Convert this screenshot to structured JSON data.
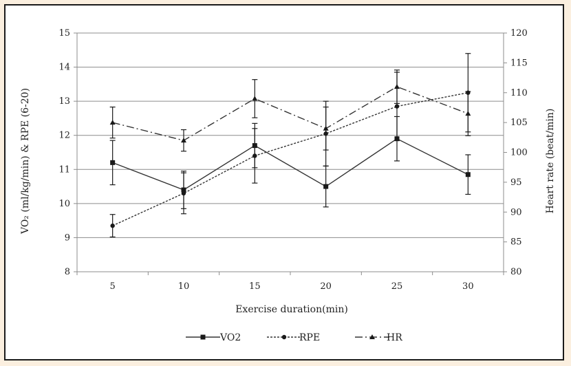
{
  "chart_data": {
    "type": "line",
    "x": [
      5,
      10,
      15,
      20,
      25,
      30
    ],
    "xlabel": "Exercise duration(min)",
    "ylabel_left": "VO₂ (ml/kg/min) & RPE (6-20)",
    "ylabel_right": "Heart rate (beat/min)",
    "ylim_left": [
      8,
      15
    ],
    "ylim_right": [
      80,
      120
    ],
    "yticks_left": [
      8,
      9,
      10,
      11,
      12,
      13,
      14,
      15
    ],
    "yticks_right": [
      80,
      85,
      90,
      95,
      100,
      105,
      110,
      115,
      120
    ],
    "grid": "horizontal",
    "legend_position": "bottom",
    "series": [
      {
        "name": "VO2",
        "axis": "left",
        "style": "solid",
        "marker": "square",
        "values": [
          11.2,
          10.4,
          11.7,
          10.5,
          11.9,
          10.85
        ],
        "errors": [
          0.65,
          0.55,
          0.65,
          0.6,
          0.65,
          0.58
        ]
      },
      {
        "name": "RPE",
        "axis": "left",
        "style": "dotted",
        "marker": "circle",
        "values": [
          9.35,
          10.3,
          11.4,
          12.05,
          12.85,
          13.25
        ],
        "errors": [
          0.33,
          0.6,
          0.8,
          0.95,
          1.0,
          1.15
        ]
      },
      {
        "name": "HR",
        "axis": "right",
        "style": "dashdot",
        "marker": "triangle",
        "values": [
          105,
          102,
          109,
          104,
          111,
          106.5
        ],
        "errors": [
          2.6,
          1.8,
          3.2,
          3.6,
          2.8,
          3.7
        ]
      }
    ]
  }
}
